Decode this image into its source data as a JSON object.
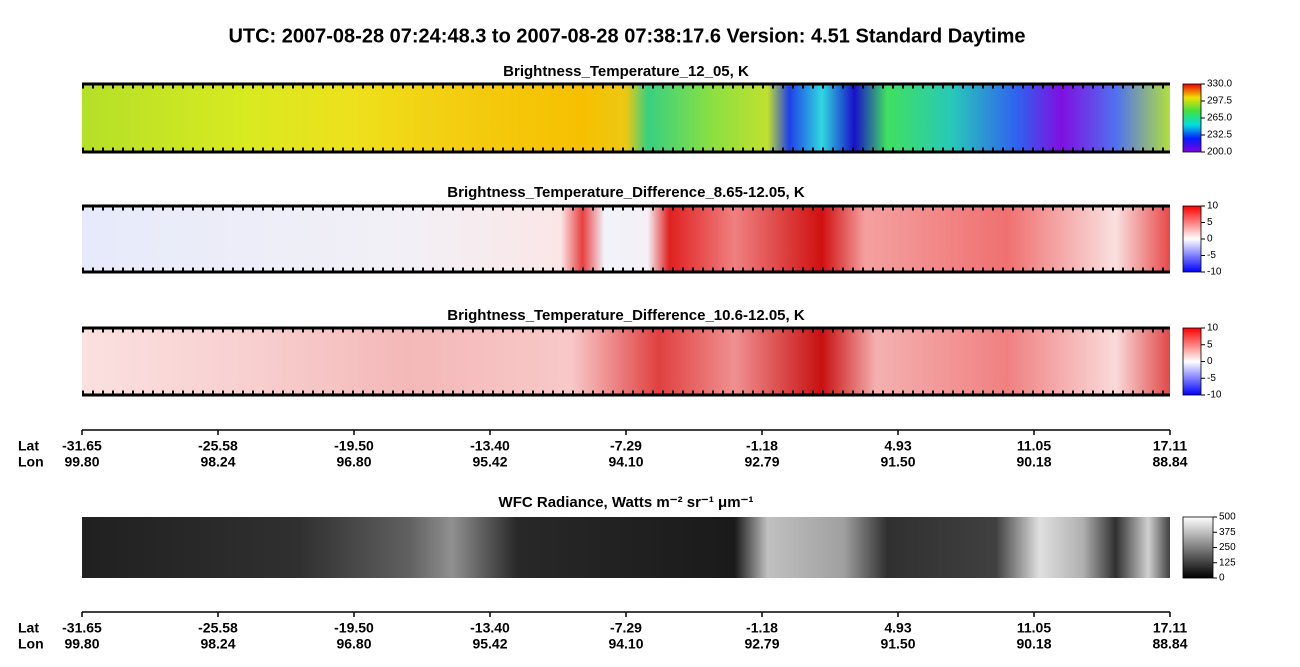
{
  "header": {
    "title": "UTC:  2007-08-28   07:24:48.3  to  2007-08-28   07:38:17.6    Version: 4.51  Standard Daytime"
  },
  "panels": [
    {
      "title": "Brightness_Temperature_12_05, K",
      "colorbar_ticks": [
        "330.0",
        "297.5",
        "265.0",
        "232.5",
        "200.0"
      ]
    },
    {
      "title": "Brightness_Temperature_Difference_8.65-12.05, K",
      "colorbar_ticks": [
        "10",
        "5",
        "0",
        "-5",
        "-10"
      ]
    },
    {
      "title": "Brightness_Temperature_Difference_10.6-12.05, K",
      "colorbar_ticks": [
        "10",
        "5",
        "0",
        "-5",
        "-10"
      ]
    },
    {
      "title": "WFC Radiance, Watts m⁻² sr⁻¹ μm⁻¹",
      "colorbar_ticks": [
        "500",
        "375",
        "250",
        "125",
        "0"
      ]
    }
  ],
  "axes": [
    {
      "lat_label": "Lat",
      "lon_label": "Lon",
      "lat": [
        "-31.65",
        "-25.58",
        "-19.50",
        "-13.40",
        "-7.29",
        "-1.18",
        "4.93",
        "11.05",
        "17.11"
      ],
      "lon": [
        "99.80",
        "98.24",
        "96.80",
        "95.42",
        "94.10",
        "92.79",
        "91.50",
        "90.18",
        "88.84"
      ]
    },
    {
      "lat_label": "Lat",
      "lon_label": "Lon",
      "lat": [
        "-31.65",
        "-25.58",
        "-19.50",
        "-13.40",
        "-7.29",
        "-1.18",
        "4.93",
        "11.05",
        "17.11"
      ],
      "lon": [
        "99.80",
        "98.24",
        "96.80",
        "95.42",
        "94.10",
        "92.79",
        "91.50",
        "90.18",
        "88.84"
      ]
    }
  ]
}
